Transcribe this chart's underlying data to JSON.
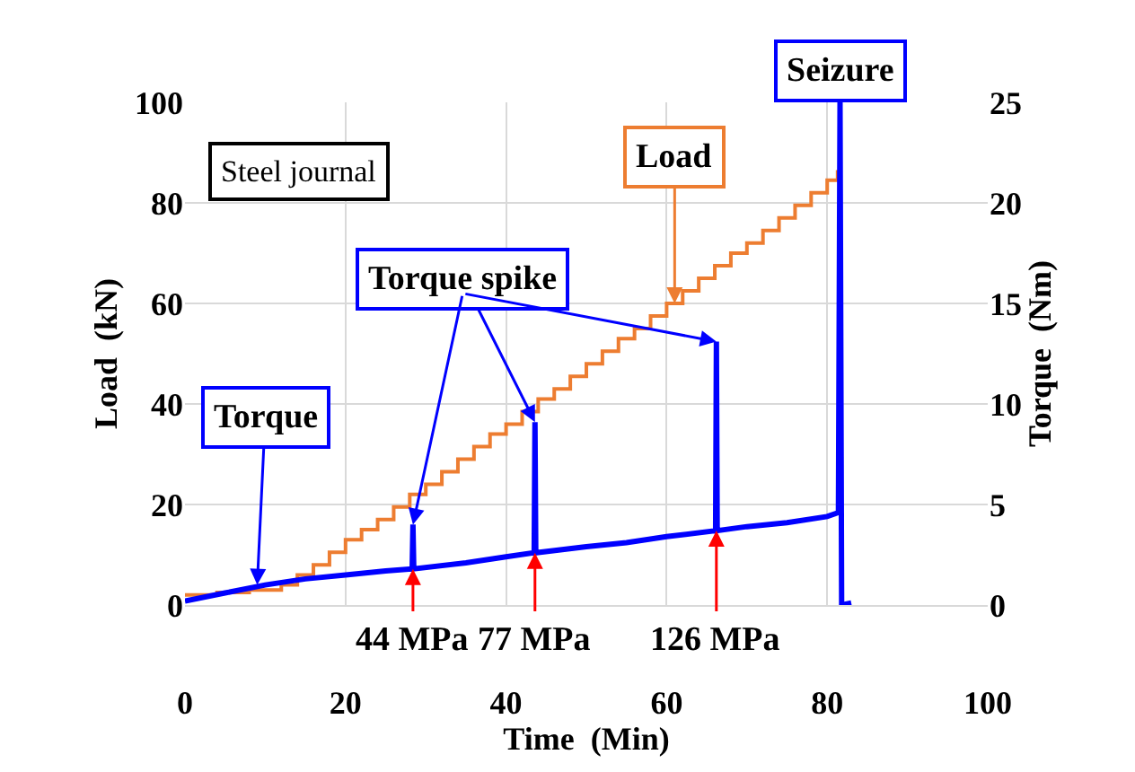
{
  "chart_data": {
    "type": "line",
    "xlabel": "Time  (Min)",
    "ylabel": "Load  (kN)",
    "y2label": "Torque  (Nm)",
    "xlim": [
      0,
      100
    ],
    "xticks": [
      0,
      20,
      40,
      60,
      80,
      100
    ],
    "ylim": [
      0,
      100
    ],
    "yticks": [
      0,
      20,
      40,
      60,
      80,
      100
    ],
    "y2lim": [
      0,
      25
    ],
    "y2ticks": [
      0,
      5,
      10,
      15,
      20,
      25
    ],
    "grid": true,
    "legend": false,
    "series": [
      {
        "type": "step",
        "color": "#ed7d31",
        "x": [
          0,
          4,
          8,
          12,
          14,
          16,
          18,
          20,
          22,
          24,
          26,
          28,
          30,
          32,
          34,
          36,
          38,
          40,
          42,
          44,
          46,
          48,
          50,
          52,
          54,
          56,
          58,
          60,
          62,
          64,
          66,
          68,
          70,
          72,
          74,
          76,
          78,
          80,
          81.3
        ],
        "values": [
          2,
          2.5,
          3,
          4,
          6,
          8,
          10.5,
          13,
          15,
          17,
          19.5,
          22,
          24,
          26.5,
          29,
          31.5,
          34,
          36,
          38.5,
          41,
          43,
          45.5,
          48,
          50.5,
          53,
          55,
          57.5,
          60,
          62.5,
          65,
          67.5,
          70,
          72,
          74.5,
          77,
          79.5,
          82,
          84.5,
          86.5
        ]
      },
      {
        "axis": "y2",
        "color": "#0000ff",
        "x": [
          0,
          5,
          10,
          15,
          20,
          25,
          28.3,
          28.4,
          28.5,
          35,
          40,
          43.5,
          43.6,
          43.7,
          50,
          55,
          60,
          66.1,
          66.2,
          66.3,
          70,
          75,
          80,
          81.4,
          81.6,
          81.8,
          83
        ],
        "values": [
          0.2,
          0.6,
          1.0,
          1.3,
          1.5,
          1.7,
          1.8,
          4.0,
          1.8,
          2.1,
          2.4,
          2.6,
          9.1,
          2.6,
          2.9,
          3.1,
          3.4,
          3.7,
          13.1,
          3.7,
          3.9,
          4.1,
          4.4,
          4.6,
          25,
          0,
          0.1
        ]
      }
    ],
    "annotations": [
      "Steel journal",
      {
        "text": "Load",
        "x": 61,
        "y": 60
      },
      {
        "text": "Torque spike",
        "x": 43.6,
        "y": 36.4
      },
      {
        "text": "Torque",
        "x": 9,
        "y": 4
      },
      {
        "text": "Seizure",
        "x": 81.6,
        "y": 100
      },
      {
        "text": "44 MPa",
        "x": 28.4,
        "y": 7.2
      },
      {
        "text": "77 MPa",
        "x": 43.6,
        "y": 10.4
      },
      {
        "text": "126 MPa",
        "x": 66.2,
        "y": 14.8
      }
    ]
  }
}
